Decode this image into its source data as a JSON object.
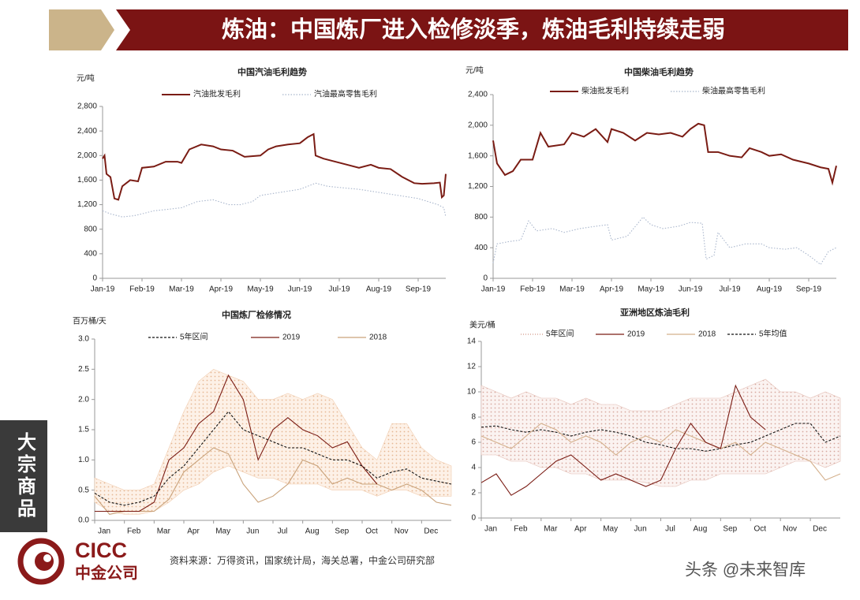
{
  "header": {
    "title": "炼油：中国炼厂进入检修淡季，炼油毛利持续走弱"
  },
  "sidebar": "大宗商品",
  "logo": {
    "en": "CICC",
    "cn": "中金公司"
  },
  "source": "资料来源：万得资讯，国家统计局，海关总署，中金公司研究部",
  "watermark": "头条 @未来智库",
  "chart_data": [
    {
      "type": "line",
      "title": "中国汽油毛利趋势",
      "y_label": "元/吨",
      "xlim": [
        0,
        8.7
      ],
      "ylim": [
        0,
        2800
      ],
      "xticks": [
        {
          "value": 0,
          "label": "Jan-19"
        },
        {
          "value": 1,
          "label": "Feb-19"
        },
        {
          "value": 2,
          "label": "Mar-19"
        },
        {
          "value": 3,
          "label": "Apr-19"
        },
        {
          "value": 4,
          "label": "May-19"
        },
        {
          "value": 5,
          "label": "Jun-19"
        },
        {
          "value": 6,
          "label": "Jul-19"
        },
        {
          "value": 7,
          "label": "Aug-19"
        },
        {
          "value": 8,
          "label": "Sep-19"
        }
      ],
      "yticks": [
        0,
        400,
        800,
        {
          "value": 1200,
          "label": "1,200"
        },
        {
          "value": 1600,
          "label": "1,600"
        },
        {
          "value": 2000,
          "label": "2,000"
        },
        {
          "value": 2400,
          "label": "2,400"
        },
        {
          "value": 2800,
          "label": "2,800"
        }
      ],
      "series": [
        {
          "name": "汽油批发毛利",
          "color": "#7a1c14",
          "style": "solid",
          "x": [
            0,
            0.05,
            0.1,
            0.2,
            0.3,
            0.4,
            0.5,
            0.7,
            0.9,
            1.0,
            1.3,
            1.6,
            1.9,
            2.0,
            2.2,
            2.5,
            2.8,
            3.0,
            3.3,
            3.6,
            4.0,
            4.2,
            4.4,
            4.7,
            5.0,
            5.2,
            5.35,
            5.4,
            5.6,
            5.9,
            6.2,
            6.5,
            6.8,
            7.0,
            7.3,
            7.6,
            7.9,
            8.1,
            8.4,
            8.55,
            8.6,
            8.65,
            8.7
          ],
          "values": [
            1950,
            2000,
            1700,
            1650,
            1300,
            1280,
            1500,
            1600,
            1580,
            1800,
            1820,
            1900,
            1900,
            1880,
            2100,
            2180,
            2150,
            2100,
            2080,
            1980,
            2000,
            2100,
            2150,
            2180,
            2200,
            2300,
            2350,
            2000,
            1950,
            1900,
            1850,
            1800,
            1850,
            1800,
            1780,
            1650,
            1550,
            1540,
            1550,
            1560,
            1320,
            1350,
            1700
          ]
        },
        {
          "name": "汽油最高零售毛利",
          "color": "#a9b6cc",
          "style": "dotted",
          "x": [
            0,
            0.2,
            0.5,
            0.8,
            1.0,
            1.3,
            1.6,
            2.0,
            2.4,
            2.8,
            3.2,
            3.5,
            3.8,
            4.0,
            4.5,
            5.0,
            5.4,
            5.7,
            6.0,
            6.5,
            7.0,
            7.5,
            8.0,
            8.5,
            8.65,
            8.7
          ],
          "values": [
            1100,
            1050,
            1000,
            1020,
            1050,
            1100,
            1120,
            1150,
            1250,
            1280,
            1200,
            1200,
            1250,
            1350,
            1400,
            1450,
            1550,
            1500,
            1480,
            1450,
            1400,
            1350,
            1300,
            1200,
            1150,
            1000
          ]
        }
      ]
    },
    {
      "type": "line",
      "title": "中国柴油毛利趋势",
      "y_label": "元/吨",
      "xlim": [
        0,
        8.7
      ],
      "ylim": [
        0,
        2400
      ],
      "xticks": [
        {
          "value": 0,
          "label": "Jan-19"
        },
        {
          "value": 1,
          "label": "Feb-19"
        },
        {
          "value": 2,
          "label": "Mar-19"
        },
        {
          "value": 3,
          "label": "Apr-19"
        },
        {
          "value": 4,
          "label": "May-19"
        },
        {
          "value": 5,
          "label": "Jun-19"
        },
        {
          "value": 6,
          "label": "Jul-19"
        },
        {
          "value": 7,
          "label": "Aug-19"
        },
        {
          "value": 8,
          "label": "Sep-19"
        }
      ],
      "yticks": [
        0,
        400,
        800,
        {
          "value": 1200,
          "label": "1,200"
        },
        {
          "value": 1600,
          "label": "1,600"
        },
        {
          "value": 2000,
          "label": "2,000"
        },
        {
          "value": 2400,
          "label": "2,400"
        }
      ],
      "series": [
        {
          "name": "柴油批发毛利",
          "color": "#7a1c14",
          "style": "solid",
          "x": [
            0,
            0.1,
            0.3,
            0.5,
            0.7,
            1.0,
            1.2,
            1.4,
            1.8,
            2.0,
            2.3,
            2.6,
            2.9,
            3.0,
            3.3,
            3.6,
            3.9,
            4.2,
            4.5,
            4.8,
            5.0,
            5.2,
            5.35,
            5.45,
            5.7,
            6.0,
            6.3,
            6.5,
            6.8,
            7.0,
            7.3,
            7.6,
            8.0,
            8.3,
            8.5,
            8.6,
            8.7
          ],
          "values": [
            1800,
            1500,
            1350,
            1400,
            1550,
            1550,
            1900,
            1720,
            1750,
            1900,
            1850,
            1950,
            1780,
            1950,
            1900,
            1800,
            1900,
            1880,
            1900,
            1850,
            1950,
            2020,
            2000,
            1650,
            1650,
            1600,
            1580,
            1700,
            1650,
            1600,
            1620,
            1550,
            1500,
            1450,
            1430,
            1250,
            1470
          ]
        },
        {
          "name": "柴油最高零售毛利",
          "color": "#a9b6cc",
          "style": "dotted",
          "x": [
            0,
            0.1,
            0.4,
            0.7,
            0.9,
            1.1,
            1.5,
            1.8,
            2.2,
            2.6,
            2.9,
            3.0,
            3.4,
            3.8,
            4.0,
            4.3,
            4.7,
            5.0,
            5.3,
            5.4,
            5.6,
            5.7,
            6.0,
            6.4,
            6.8,
            7.0,
            7.4,
            7.7,
            8.0,
            8.3,
            8.5,
            8.7
          ],
          "values": [
            200,
            450,
            480,
            500,
            750,
            620,
            650,
            600,
            650,
            680,
            700,
            500,
            550,
            800,
            700,
            650,
            680,
            730,
            720,
            250,
            300,
            600,
            400,
            450,
            450,
            400,
            380,
            400,
            300,
            180,
            350,
            400
          ]
        }
      ]
    },
    {
      "type": "line",
      "title": "中国炼厂检修情况",
      "y_label": "百万桶/天",
      "xlim": [
        0,
        12
      ],
      "ylim": [
        0,
        3
      ],
      "xticks": [
        {
          "value": 0,
          "label": "Jan"
        },
        {
          "value": 1,
          "label": "Feb"
        },
        {
          "value": 2,
          "label": "Mar"
        },
        {
          "value": 3,
          "label": "Apr"
        },
        {
          "value": 4,
          "label": "May"
        },
        {
          "value": 5,
          "label": "Jun"
        },
        {
          "value": 6,
          "label": "Jul"
        },
        {
          "value": 7,
          "label": "Aug"
        },
        {
          "value": 8,
          "label": "Sep"
        },
        {
          "value": 9,
          "label": "Oct"
        },
        {
          "value": 10,
          "label": "Nov"
        },
        {
          "value": 11,
          "label": "Dec"
        }
      ],
      "yticks": [
        {
          "value": 0,
          "label": "0.0"
        },
        0.5,
        {
          "value": 1,
          "label": "1.0"
        },
        1.5,
        {
          "value": 2,
          "label": "2.0"
        },
        2.5,
        {
          "value": 3,
          "label": "3.0"
        }
      ],
      "x": [
        0,
        0.5,
        1,
        1.5,
        2,
        2.5,
        3,
        3.5,
        4,
        4.5,
        5,
        5.5,
        6,
        6.5,
        7,
        7.5,
        8,
        8.5,
        9,
        9.5,
        10,
        10.5,
        11,
        11.5,
        12
      ],
      "range": {
        "color": "#f1cdb0",
        "low": [
          0.3,
          0.15,
          0.1,
          0.1,
          0.15,
          0.3,
          0.5,
          0.6,
          0.8,
          0.9,
          0.8,
          0.7,
          0.7,
          0.6,
          0.6,
          0.6,
          0.5,
          0.5,
          0.5,
          0.4,
          0.5,
          0.5,
          0.4,
          0.4,
          0.4
        ],
        "high": [
          0.7,
          0.6,
          0.5,
          0.5,
          0.6,
          1.2,
          1.8,
          2.3,
          2.5,
          2.4,
          2.3,
          2.0,
          2.0,
          2.1,
          2.0,
          2.1,
          2.0,
          1.6,
          1.2,
          1.0,
          1.6,
          1.6,
          1.2,
          1.0,
          0.9
        ]
      },
      "series": [
        {
          "name": "5年区间",
          "color": "#111111",
          "style": "dashed",
          "values": [
            0.45,
            0.3,
            0.25,
            0.3,
            0.4,
            0.7,
            0.9,
            1.2,
            1.5,
            1.8,
            1.5,
            1.4,
            1.3,
            1.2,
            1.2,
            1.1,
            1.0,
            1.0,
            0.9,
            0.7,
            0.8,
            0.85,
            0.7,
            0.65,
            0.6
          ]
        },
        {
          "name": "2019",
          "color": "#7a1c14",
          "style": "solid",
          "values": [
            0.15,
            0.15,
            0.15,
            0.15,
            0.3,
            1.0,
            1.2,
            1.6,
            1.8,
            2.4,
            2.0,
            1.0,
            1.5,
            1.7,
            1.5,
            1.4,
            1.2,
            1.3,
            0.9,
            0.6,
            null,
            null,
            null,
            null,
            null
          ]
        },
        {
          "name": "2018",
          "color": "#c9a27a",
          "style": "solid",
          "values": [
            0.4,
            0.1,
            0.15,
            0.15,
            0.15,
            0.35,
            0.8,
            1.0,
            1.2,
            1.1,
            0.6,
            0.3,
            0.4,
            0.6,
            1.0,
            0.9,
            0.6,
            0.7,
            0.6,
            0.6,
            0.5,
            0.6,
            0.5,
            0.3,
            0.25
          ]
        }
      ]
    },
    {
      "type": "line",
      "title": "亚洲地区炼油毛利",
      "y_label": "美元/桶",
      "xlim": [
        0,
        12
      ],
      "ylim": [
        0,
        14
      ],
      "xticks": [
        {
          "value": 0,
          "label": "Jan"
        },
        {
          "value": 1,
          "label": "Feb"
        },
        {
          "value": 2,
          "label": "Mar"
        },
        {
          "value": 3,
          "label": "Apr"
        },
        {
          "value": 4,
          "label": "May"
        },
        {
          "value": 5,
          "label": "Jun"
        },
        {
          "value": 6,
          "label": "Jul"
        },
        {
          "value": 7,
          "label": "Aug"
        },
        {
          "value": 8,
          "label": "Sep"
        },
        {
          "value": 9,
          "label": "Oct"
        },
        {
          "value": 10,
          "label": "Nov"
        },
        {
          "value": 11,
          "label": "Dec"
        }
      ],
      "yticks": [
        0,
        2,
        4,
        6,
        8,
        10,
        12,
        14
      ],
      "x": [
        0,
        0.5,
        1,
        1.5,
        2,
        2.5,
        3,
        3.5,
        4,
        4.5,
        5,
        5.5,
        6,
        6.5,
        7,
        7.5,
        8,
        8.5,
        9,
        9.5,
        10,
        10.5,
        11,
        11.5,
        12
      ],
      "range": {
        "name": "5年区间",
        "color": "#e3bdb3",
        "low": [
          5,
          5,
          4.5,
          4.5,
          4,
          4,
          3.5,
          3.5,
          3,
          3,
          3,
          2.8,
          2.5,
          2.5,
          3,
          3,
          3.5,
          3.5,
          3.5,
          3.5,
          4,
          4.5,
          4.5,
          4,
          4.5
        ],
        "high": [
          10.5,
          10,
          9.5,
          10,
          9.5,
          9.5,
          9,
          9.5,
          9,
          9,
          8.5,
          8.5,
          8.5,
          9,
          9.5,
          9.5,
          9.5,
          10,
          10.5,
          11,
          10,
          10,
          9.5,
          10,
          9.5
        ]
      },
      "series": [
        {
          "name": "2019",
          "color": "#7a1c14",
          "style": "solid",
          "values": [
            2.8,
            3.5,
            1.8,
            2.5,
            3.5,
            4.5,
            5.0,
            4.0,
            3.0,
            3.5,
            3.0,
            2.5,
            3.0,
            5.5,
            7.5,
            6.0,
            5.5,
            10.5,
            8.0,
            7.0,
            null,
            null,
            null,
            null,
            null
          ]
        },
        {
          "name": "2018",
          "color": "#d4b08c",
          "style": "solid",
          "values": [
            6.5,
            6,
            5.5,
            6.5,
            7.5,
            7,
            6,
            6.5,
            6,
            5,
            6,
            6.5,
            6,
            7,
            6.5,
            6,
            5.5,
            6,
            5,
            6,
            5.5,
            5,
            4.5,
            3,
            3.5
          ]
        },
        {
          "name": "5年均值",
          "color": "#111111",
          "style": "dashed",
          "values": [
            7.2,
            7.3,
            7.0,
            6.8,
            7.0,
            6.8,
            6.5,
            6.8,
            7.0,
            6.8,
            6.5,
            6.0,
            5.8,
            5.5,
            5.5,
            5.3,
            5.5,
            5.8,
            6.0,
            6.5,
            7.0,
            7.5,
            7.5,
            6.0,
            6.5
          ]
        }
      ]
    }
  ]
}
